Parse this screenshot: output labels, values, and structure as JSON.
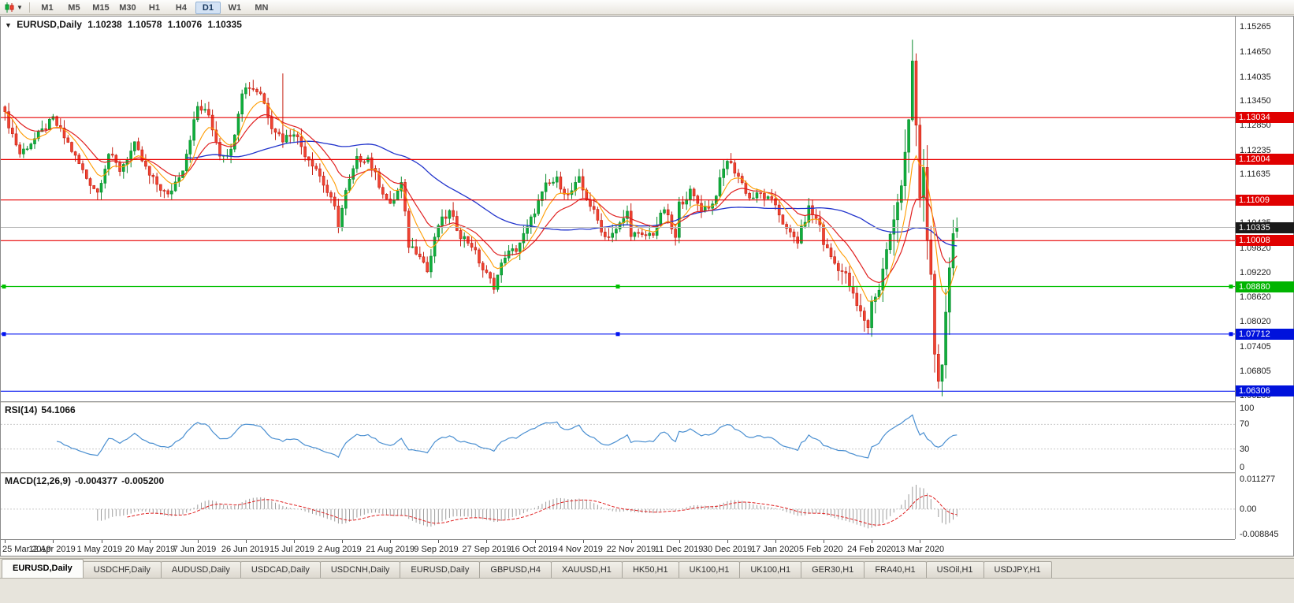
{
  "toolbar": {
    "timeframes": [
      "M1",
      "M5",
      "M15",
      "M30",
      "H1",
      "H4",
      "D1",
      "W1",
      "MN"
    ],
    "active_timeframe": "D1"
  },
  "chart": {
    "info_line": {
      "collapse_icon": "▼",
      "symbol_period": "EURUSD,Daily",
      "open": "1.10238",
      "high": "1.10578",
      "low": "1.10076",
      "close": "1.10335"
    },
    "price_axis": {
      "max": 1.1552,
      "min": 1.0606,
      "labels": [
        "1.15265",
        "1.14650",
        "1.14035",
        "1.13450",
        "1.12850",
        "1.12235",
        "1.11635",
        "1.10435",
        "1.09820",
        "1.09220",
        "1.08620",
        "1.08020",
        "1.07405",
        "1.06805",
        "1.06200"
      ]
    },
    "levels": [
      {
        "label": "1.13034",
        "value": 1.13034,
        "color": "#e80000",
        "badge_bg": "#e00000",
        "selected": false
      },
      {
        "label": "1.12004",
        "value": 1.12004,
        "color": "#e80000",
        "badge_bg": "#e00000",
        "selected": false
      },
      {
        "label": "1.11009",
        "value": 1.11009,
        "color": "#e80000",
        "badge_bg": "#e00000",
        "selected": false
      },
      {
        "label": "1.10008",
        "value": 1.10008,
        "color": "#e80000",
        "badge_bg": "#e00000",
        "selected": false
      },
      {
        "label": "1.08880",
        "value": 1.0888,
        "color": "#00c000",
        "badge_bg": "#00b400",
        "selected": true
      },
      {
        "label": "1.07712",
        "value": 1.07712,
        "color": "#0012f0",
        "badge_bg": "#0012dc",
        "selected": true
      },
      {
        "label": "1.06306",
        "value": 1.06306,
        "color": "#0012f0",
        "badge_bg": "#0012dc",
        "selected": false
      }
    ],
    "current_price": {
      "label": "1.10335",
      "value": 1.10335,
      "badge_bg": "#1a1a1a",
      "line_color": "#b8b8b8"
    },
    "colors": {
      "up": "#0faf3c",
      "up_stroke": "#0a8a2d",
      "down": "#f04332",
      "down_stroke": "#c51f12"
    },
    "ma": {
      "fast": {
        "period": 8,
        "color": "#ff9c00"
      },
      "mid": {
        "period": 17,
        "color": "#e02020"
      },
      "slow": {
        "period": 50,
        "color": "#2234cc"
      }
    }
  },
  "chart_data": {
    "type": "candlestick",
    "symbol": "EURUSD",
    "period": "Daily",
    "bars_total": 258,
    "bar_spacing": 4.7,
    "label_bar_step": 13,
    "x_labels": [
      "25 Mar 2019",
      "12 Apr 2019",
      "1 May 2019",
      "20 May 2019",
      "7 Jun 2019",
      "26 Jun 2019",
      "15 Jul 2019",
      "2 Aug 2019",
      "21 Aug 2019",
      "9 Sep 2019",
      "27 Sep 2019",
      "16 Oct 2019",
      "4 Nov 2019",
      "22 Nov 2019",
      "11 Dec 2019",
      "30 Dec 2019",
      "17 Jan 2020",
      "5 Feb 2020",
      "24 Feb 2020",
      "13 Mar 2020"
    ],
    "anchors": [
      [
        0,
        1.131
      ],
      [
        4,
        1.1215
      ],
      [
        9,
        1.126
      ],
      [
        13,
        1.13
      ],
      [
        17,
        1.124
      ],
      [
        22,
        1.1155
      ],
      [
        25,
        1.112
      ],
      [
        28,
        1.1215
      ],
      [
        31,
        1.1175
      ],
      [
        35,
        1.1235
      ],
      [
        39,
        1.116
      ],
      [
        44,
        1.111
      ],
      [
        48,
        1.118
      ],
      [
        52,
        1.133
      ],
      [
        55,
        1.131
      ],
      [
        58,
        1.1215
      ],
      [
        61,
        1.122
      ],
      [
        64,
        1.137
      ],
      [
        66,
        1.138
      ],
      [
        69,
        1.1365
      ],
      [
        72,
        1.1285
      ],
      [
        75,
        1.125
      ],
      [
        78,
        1.127
      ],
      [
        81,
        1.1215
      ],
      [
        84,
        1.118
      ],
      [
        87,
        1.112
      ],
      [
        89,
        1.108
      ],
      [
        90,
        1.104
      ],
      [
        92,
        1.112
      ],
      [
        95,
        1.12
      ],
      [
        98,
        1.1205
      ],
      [
        101,
        1.114
      ],
      [
        104,
        1.1085
      ],
      [
        107,
        1.114
      ],
      [
        109,
        1.099
      ],
      [
        112,
        1.097
      ],
      [
        114,
        1.0925
      ],
      [
        117,
        1.104
      ],
      [
        120,
        1.107
      ],
      [
        123,
        1.1015
      ],
      [
        126,
        1.099
      ],
      [
        129,
        1.093
      ],
      [
        132,
        1.089
      ],
      [
        135,
        1.0965
      ],
      [
        138,
        1.098
      ],
      [
        141,
        1.103
      ],
      [
        143,
        1.1075
      ],
      [
        146,
        1.1135
      ],
      [
        149,
        1.115
      ],
      [
        152,
        1.111
      ],
      [
        155,
        1.115
      ],
      [
        156,
        1.1125
      ],
      [
        159,
        1.107
      ],
      [
        162,
        1.101
      ],
      [
        165,
        1.1025
      ],
      [
        168,
        1.107
      ],
      [
        169,
        1.102
      ],
      [
        172,
        1.101
      ],
      [
        175,
        1.102
      ],
      [
        178,
        1.108
      ],
      [
        181,
        1.1005
      ],
      [
        182,
        1.109
      ],
      [
        185,
        1.112
      ],
      [
        188,
        1.108
      ],
      [
        191,
        1.109
      ],
      [
        194,
        1.1175
      ],
      [
        195,
        1.12
      ],
      [
        198,
        1.116
      ],
      [
        201,
        1.1105
      ],
      [
        204,
        1.1115
      ],
      [
        207,
        1.1095
      ],
      [
        208,
        1.109
      ],
      [
        211,
        1.1025
      ],
      [
        214,
        1.1
      ],
      [
        217,
        1.108
      ],
      [
        220,
        1.104
      ],
      [
        221,
        1.0995
      ],
      [
        224,
        1.0945
      ],
      [
        227,
        1.0915
      ],
      [
        230,
        1.084
      ],
      [
        233,
        1.079
      ],
      [
        234,
        1.085
      ],
      [
        236,
        1.088
      ],
      [
        238,
        1.098
      ],
      [
        240,
        1.105
      ],
      [
        242,
        1.114
      ],
      [
        244,
        1.13
      ],
      [
        245,
        1.144
      ],
      [
        246,
        1.128
      ],
      [
        247,
        1.1105
      ],
      [
        248,
        1.118
      ],
      [
        249,
        1.1
      ],
      [
        250,
        1.092
      ],
      [
        251,
        1.072
      ],
      [
        252,
        1.066
      ],
      [
        253,
        1.069
      ],
      [
        254,
        1.082
      ],
      [
        255,
        1.093
      ],
      [
        256,
        1.102
      ],
      [
        257,
        1.10335
      ]
    ],
    "extremes": [
      {
        "i": 75,
        "high": 1.1412
      },
      {
        "i": 232,
        "low": 1.0777
      },
      {
        "i": 245,
        "high": 1.1495
      },
      {
        "i": 252,
        "low": 1.0637
      }
    ],
    "last_bar": {
      "open": 1.10238,
      "high": 1.10578,
      "low": 1.10076,
      "close": 1.10335
    }
  },
  "rsi": {
    "label": "RSI(14)",
    "value": "54.1066",
    "period": 14,
    "axis_labels": [
      "100",
      "70",
      "30",
      "0"
    ],
    "axis_values": [
      100,
      70,
      30,
      0
    ],
    "guide_levels": [
      70,
      30
    ],
    "line_color": "#4a8fd1"
  },
  "macd": {
    "label": "MACD(12,26,9)",
    "value_main": "-0.004377",
    "value_signal": "-0.005200",
    "fast": 12,
    "slow": 26,
    "signal": 9,
    "scale_max": 0.011277,
    "scale_min": -0.008845,
    "axis_labels": [
      "0.011277",
      "0.00",
      "-0.008845"
    ],
    "axis_values": [
      0.011277,
      0,
      -0.008845
    ],
    "hist_color": "#9c9c9c",
    "signal_color": "#e02020"
  },
  "tabs": [
    {
      "label": "EURUSD,Daily",
      "active": true
    },
    {
      "label": "USDCHF,Daily",
      "active": false
    },
    {
      "label": "AUDUSD,Daily",
      "active": false
    },
    {
      "label": "USDCAD,Daily",
      "active": false
    },
    {
      "label": "USDCNH,Daily",
      "active": false
    },
    {
      "label": "EURUSD,Daily",
      "active": false
    },
    {
      "label": "GBPUSD,H4",
      "active": false
    },
    {
      "label": "XAUUSD,H1",
      "active": false
    },
    {
      "label": "HK50,H1",
      "active": false
    },
    {
      "label": "UK100,H1",
      "active": false
    },
    {
      "label": "UK100,H1",
      "active": false
    },
    {
      "label": "GER30,H1",
      "active": false
    },
    {
      "label": "FRA40,H1",
      "active": false
    },
    {
      "label": "USOil,H1",
      "active": false
    },
    {
      "label": "USDJPY,H1",
      "active": false
    }
  ]
}
